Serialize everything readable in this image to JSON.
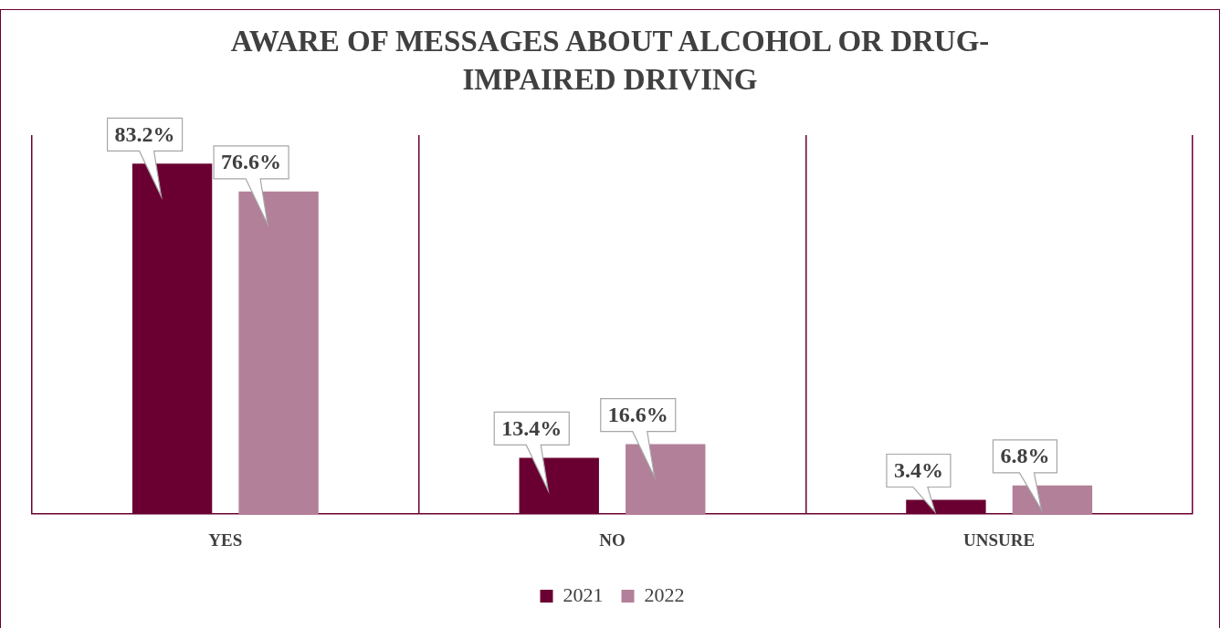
{
  "chart_data": {
    "type": "bar",
    "title": "AWARE OF MESSAGES ABOUT ALCOHOL OR DRUG-IMPAIRED DRIVING",
    "categories": [
      "YES",
      "NO",
      "UNSURE"
    ],
    "series": [
      {
        "name": "2021",
        "color": "#6a0032",
        "values": [
          83.2,
          13.4,
          3.4
        ],
        "value_labels": [
          "83.2%",
          "13.4%",
          "3.4%"
        ]
      },
      {
        "name": "2022",
        "color": "#b28098",
        "values": [
          76.6,
          16.6,
          6.8
        ],
        "value_labels": [
          "76.6%",
          "16.6%",
          "6.8%"
        ]
      }
    ],
    "grid": "x",
    "legend": "bottom"
  }
}
